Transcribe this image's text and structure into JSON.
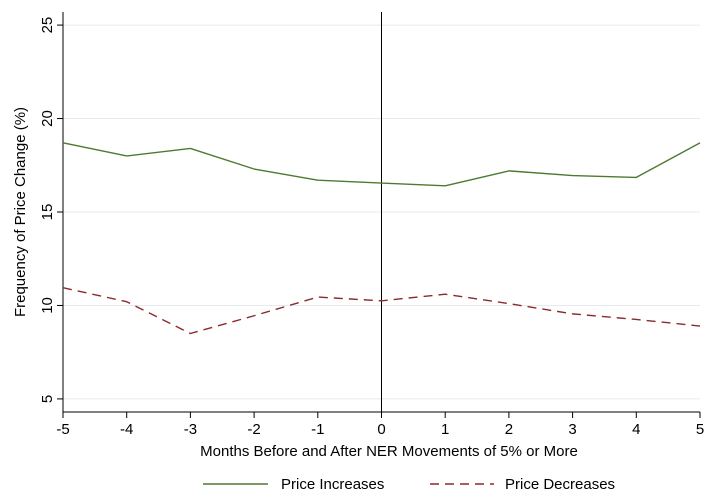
{
  "chart_data": {
    "type": "line",
    "title": "",
    "xlabel": "Months Before and After NER Movements of 5% or More",
    "ylabel": "Frequency of Price Change (%)",
    "x": [
      -5,
      -4,
      -3,
      -2,
      -1,
      0,
      1,
      2,
      3,
      4,
      5
    ],
    "xticks": [
      "-5",
      "-4",
      "-3",
      "-2",
      "-1",
      "0",
      "1",
      "2",
      "3",
      "4",
      "5"
    ],
    "yticks": [
      "5",
      "10",
      "15",
      "20",
      "25"
    ],
    "xlim": [
      -5,
      5
    ],
    "ylim": [
      4.3,
      25.7
    ],
    "grid": "horizontal",
    "vline_x": 0,
    "legend_position": "bottom",
    "series": [
      {
        "name": "Price Increases",
        "color": "#4e7a2f",
        "style": "solid",
        "values": [
          18.7,
          18.0,
          18.4,
          17.3,
          16.7,
          16.55,
          16.4,
          17.2,
          16.95,
          16.85,
          18.7
        ]
      },
      {
        "name": "Price Decreases",
        "color": "#8b2a2a",
        "style": "dashed",
        "values": [
          10.95,
          10.2,
          8.5,
          9.45,
          10.45,
          10.25,
          10.6,
          10.1,
          9.55,
          9.25,
          8.9
        ]
      }
    ]
  }
}
